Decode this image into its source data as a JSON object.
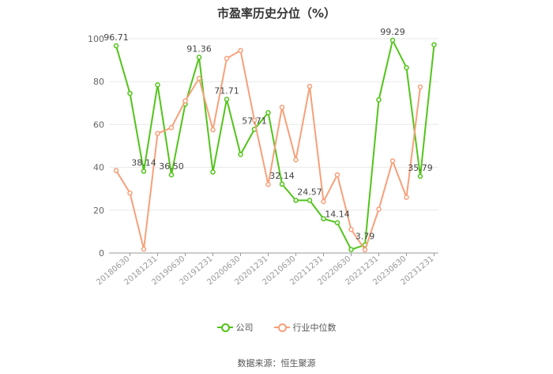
{
  "chart_data": {
    "type": "line",
    "title": "市盈率历史分位（%）",
    "categories": [
      "20180630",
      "20181231",
      "20190630",
      "20191231",
      "20200630",
      "20201231",
      "20210630",
      "20211231",
      "20220630",
      "20221231",
      "20230630",
      "20231231"
    ],
    "x": [
      "20180331",
      "20180630",
      "20180930",
      "20181231",
      "20190331",
      "20190630",
      "20190930",
      "20191231",
      "20200331",
      "20200630",
      "20200930",
      "20201231",
      "20210331",
      "20210630",
      "20210930",
      "20211231",
      "20220331",
      "20220630",
      "20220930",
      "20221231",
      "20230331",
      "20230630",
      "20230930",
      "20231231",
      "20240331"
    ],
    "ylim": [
      0,
      100
    ],
    "yticks": [
      0,
      20,
      40,
      60,
      80,
      100
    ],
    "grid": true,
    "legend_position": "bottom",
    "series": [
      {
        "name": "公司",
        "color": "#52c41a",
        "values": [
          96.71,
          74.5,
          38.14,
          78.5,
          36.5,
          69.5,
          91.36,
          37.8,
          71.71,
          46.0,
          57.71,
          65.5,
          32.14,
          24.57,
          24.57,
          16.0,
          14.14,
          1.6,
          3.79,
          71.5,
          99.29,
          86.5,
          35.79,
          97.2,
          null
        ],
        "data_labels": {
          "0": "96.71",
          "2": "38.14",
          "4": "36.50",
          "6": "91.36",
          "8": "71.71",
          "10": "57.71",
          "12": "32.14",
          "14": "24.57",
          "16": "14.14",
          "18": "3.79",
          "20": "99.29",
          "22": "35.79"
        }
      },
      {
        "name": "行业中位数",
        "color": "#f7a07a",
        "values": [
          38.5,
          28.0,
          1.8,
          55.8,
          58.5,
          71.0,
          81.5,
          57.5,
          90.8,
          94.5,
          62.0,
          32.0,
          68.0,
          43.5,
          77.8,
          24.0,
          36.5,
          11.0,
          1.5,
          20.5,
          43.0,
          26.0,
          77.5,
          null,
          null
        ]
      }
    ]
  },
  "legend": {
    "company_label": "公司",
    "industry_label": "行业中位数"
  },
  "source_text": "数据来源：恒生聚源"
}
